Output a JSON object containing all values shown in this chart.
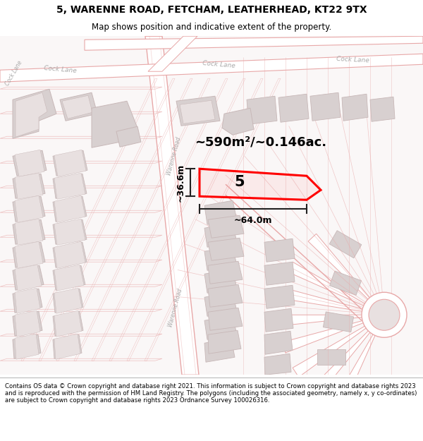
{
  "title_line1": "5, WARENNE ROAD, FETCHAM, LEATHERHEAD, KT22 9TX",
  "title_line2": "Map shows position and indicative extent of the property.",
  "footer_text": "Contains OS data © Crown copyright and database right 2021. This information is subject to Crown copyright and database rights 2023 and is reproduced with the permission of HM Land Registry. The polygons (including the associated geometry, namely x, y co-ordinates) are subject to Crown copyright and database rights 2023 Ordnance Survey 100026316.",
  "area_label": "~590m²/~0.146ac.",
  "width_label": "~64.0m",
  "height_label": "~36.6m",
  "number_label": "5",
  "map_bg": "#ffffff",
  "road_outline": "#e8a8a8",
  "road_fill": "#ffffff",
  "building_fill": "#d8d0d0",
  "building_edge": "#c8b8b8",
  "plot_line": "#e8a8a8",
  "highlight_color": "#ff0000",
  "dim_color": "#222222",
  "label_color": "#aaaaaa",
  "title_color": "#000000"
}
